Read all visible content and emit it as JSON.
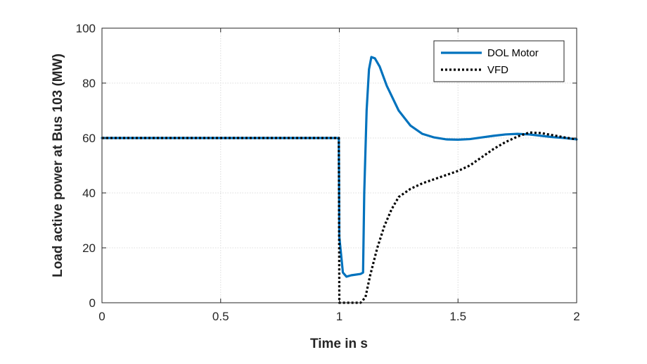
{
  "chart_data": {
    "type": "line",
    "title": "",
    "xlabel": "Time in s",
    "ylabel": "Load active power at Bus 103 (MW)",
    "xlim": [
      0,
      2
    ],
    "ylim": [
      0,
      100
    ],
    "xticks": [
      0,
      0.5,
      1,
      1.5,
      2
    ],
    "xtick_labels": [
      "0",
      "0.5",
      "1",
      "1.5",
      "2"
    ],
    "yticks": [
      0,
      20,
      40,
      60,
      80,
      100
    ],
    "ytick_labels": [
      "0",
      "20",
      "40",
      "60",
      "80",
      "100"
    ],
    "grid": true,
    "legend_position": "top-right",
    "series": [
      {
        "name": "DOL Motor",
        "color": "#0072BD",
        "style": "solid",
        "points": [
          [
            0,
            60
          ],
          [
            0.998,
            60
          ],
          [
            1.0,
            24
          ],
          [
            1.015,
            11
          ],
          [
            1.03,
            9.5
          ],
          [
            1.05,
            10
          ],
          [
            1.09,
            10.5
          ],
          [
            1.1,
            11
          ],
          [
            1.105,
            40
          ],
          [
            1.115,
            70
          ],
          [
            1.125,
            85
          ],
          [
            1.135,
            89.5
          ],
          [
            1.15,
            89
          ],
          [
            1.17,
            86
          ],
          [
            1.2,
            79
          ],
          [
            1.25,
            70
          ],
          [
            1.3,
            64.5
          ],
          [
            1.35,
            61.5
          ],
          [
            1.4,
            60.2
          ],
          [
            1.45,
            59.5
          ],
          [
            1.5,
            59.4
          ],
          [
            1.55,
            59.6
          ],
          [
            1.6,
            60.2
          ],
          [
            1.65,
            60.8
          ],
          [
            1.7,
            61.3
          ],
          [
            1.75,
            61.5
          ],
          [
            1.8,
            61.3
          ],
          [
            1.85,
            60.8
          ],
          [
            1.9,
            60.3
          ],
          [
            1.95,
            60.0
          ],
          [
            2.0,
            59.5
          ]
        ]
      },
      {
        "name": "VFD",
        "color": "#000000",
        "style": "dotted",
        "points": [
          [
            0,
            60
          ],
          [
            0.998,
            60
          ],
          [
            1.0,
            0
          ],
          [
            1.09,
            0
          ],
          [
            1.11,
            2
          ],
          [
            1.13,
            10
          ],
          [
            1.16,
            20
          ],
          [
            1.19,
            28
          ],
          [
            1.22,
            34
          ],
          [
            1.25,
            38.5
          ],
          [
            1.3,
            41.5
          ],
          [
            1.35,
            43.5
          ],
          [
            1.4,
            45
          ],
          [
            1.45,
            46.5
          ],
          [
            1.5,
            48
          ],
          [
            1.55,
            50
          ],
          [
            1.6,
            53
          ],
          [
            1.65,
            56
          ],
          [
            1.7,
            58.5
          ],
          [
            1.75,
            60.5
          ],
          [
            1.8,
            62
          ],
          [
            1.85,
            61.8
          ],
          [
            1.9,
            61
          ],
          [
            1.95,
            60.2
          ],
          [
            2.0,
            59.5
          ]
        ]
      }
    ]
  }
}
